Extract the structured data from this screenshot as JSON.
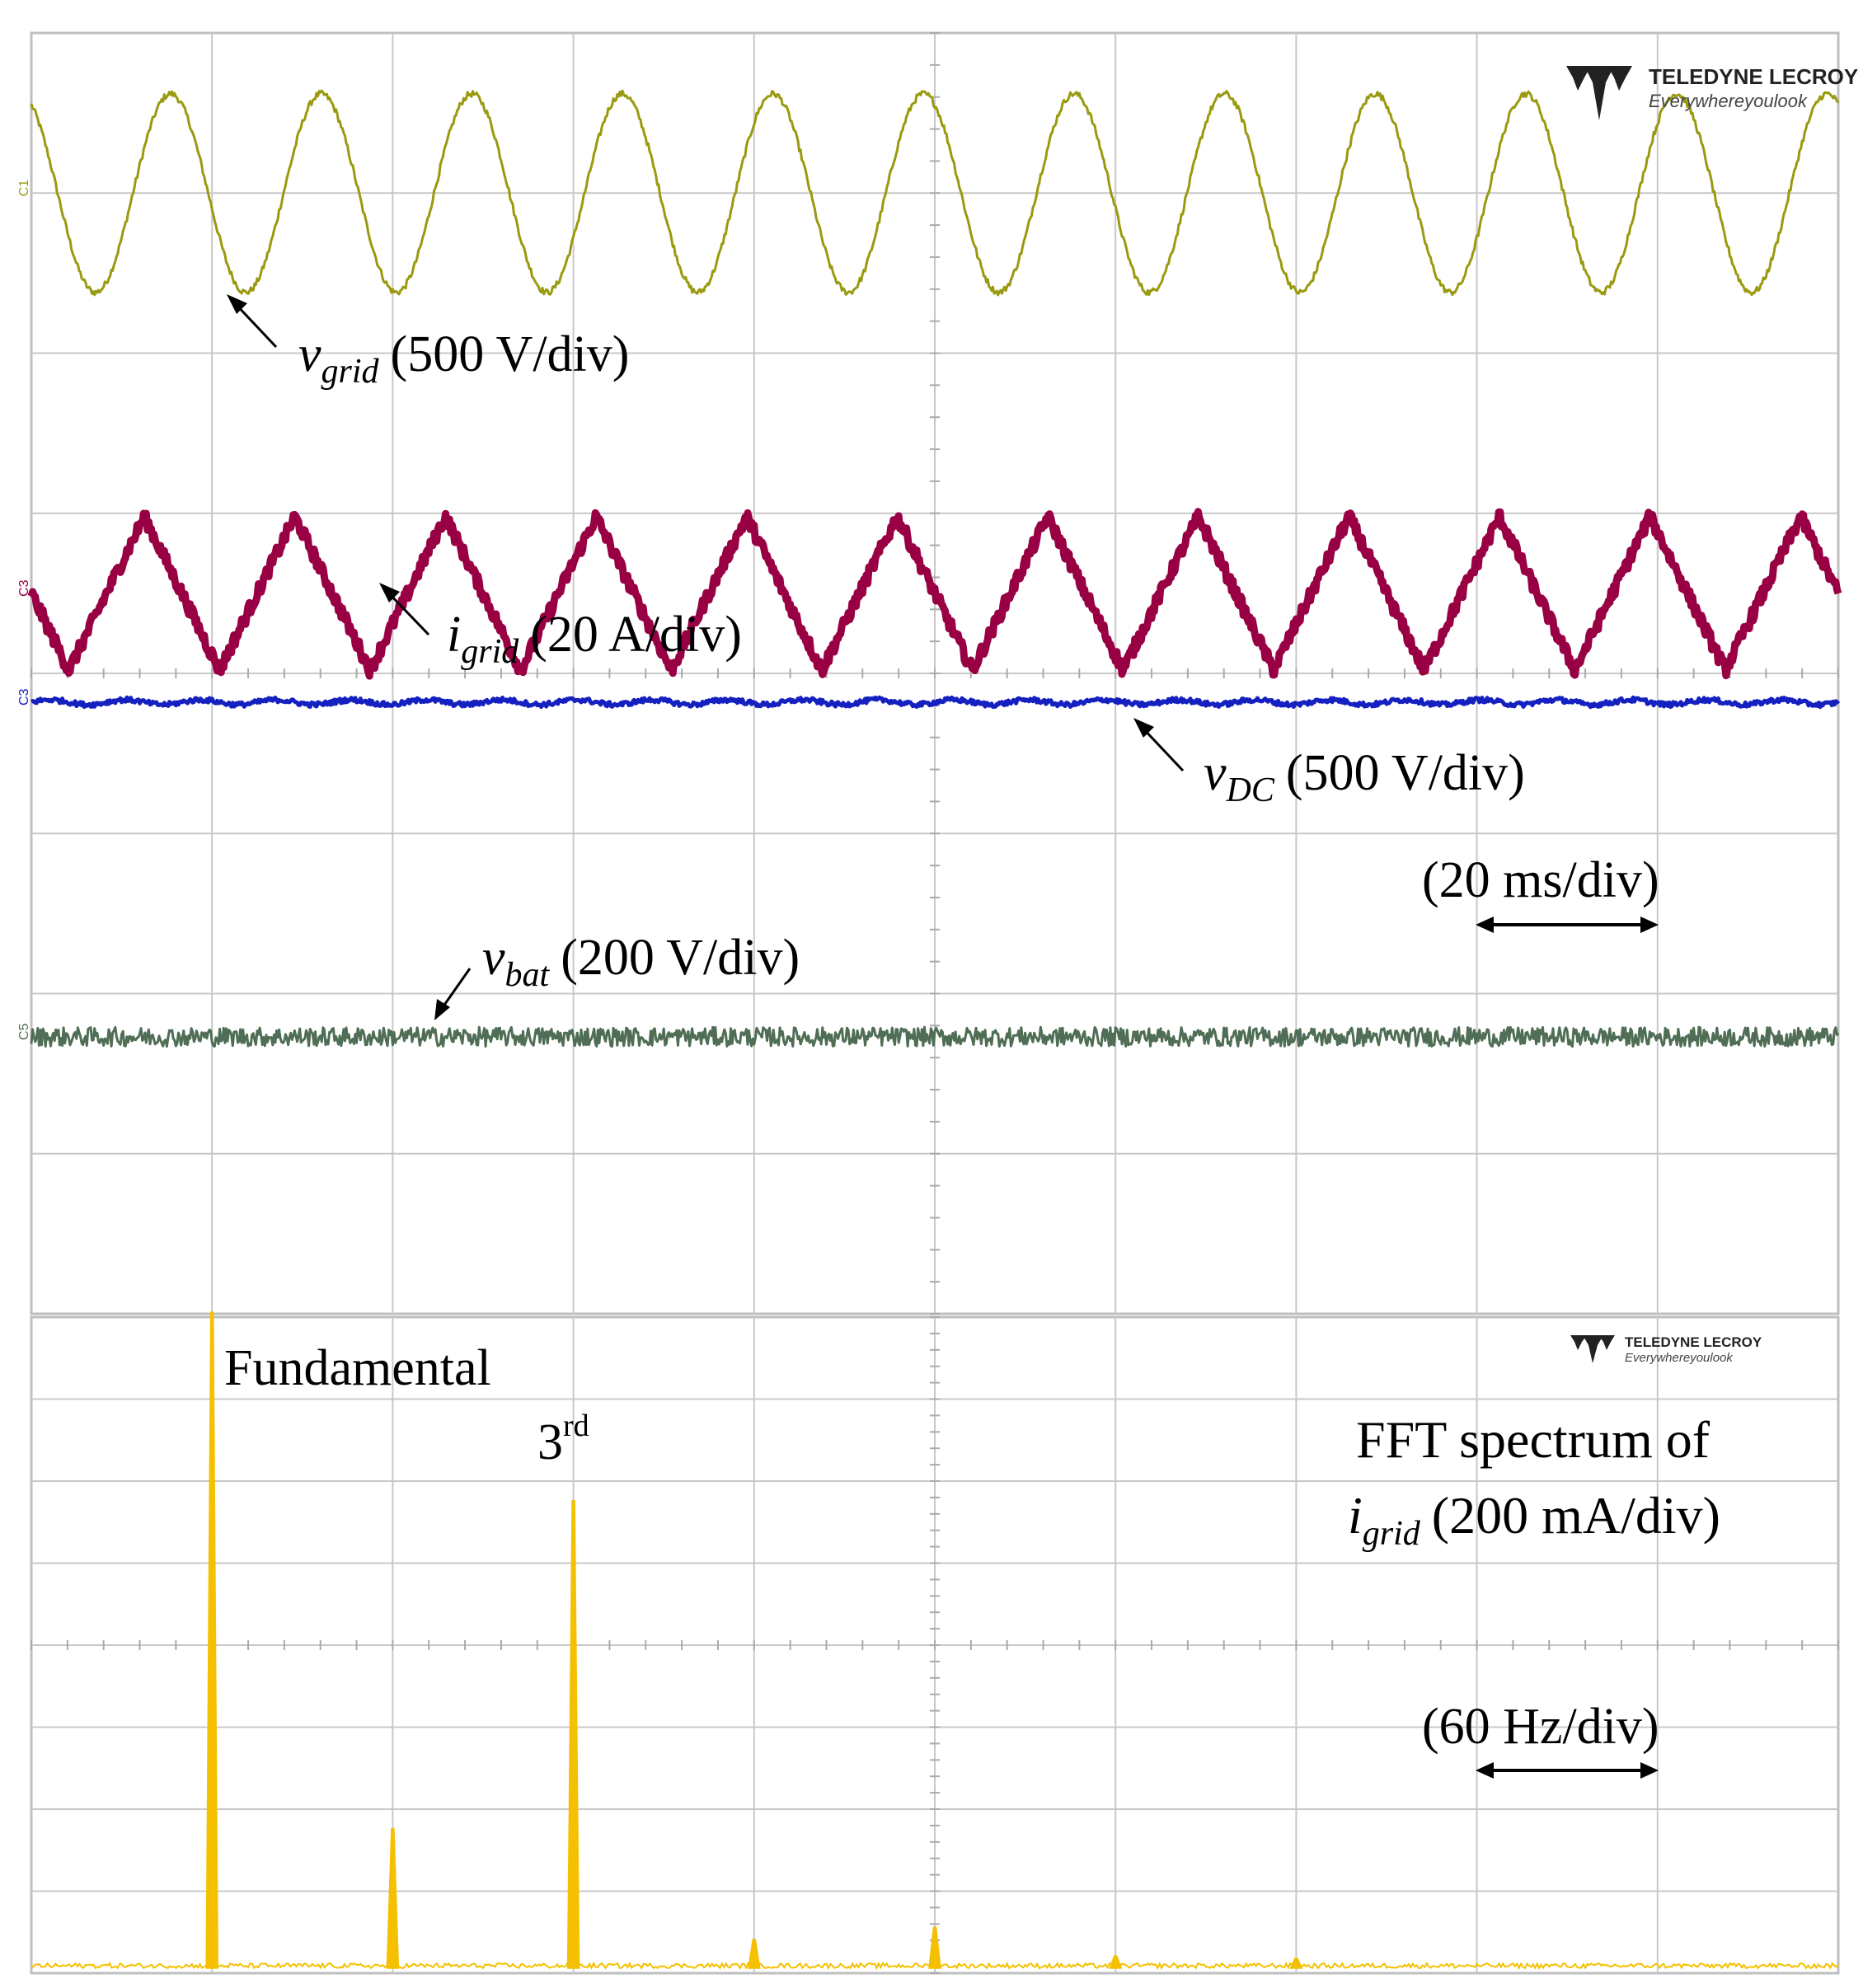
{
  "chart_data": [
    {
      "type": "line",
      "panel": "time-domain waveforms",
      "x_unit_label": "(20 ms/div)",
      "x_divisions": 10,
      "y_divisions": 8,
      "logo": {
        "brand": "TELEDYNE LECROY",
        "tagline": "Everywhereyoulook"
      },
      "series": [
        {
          "id": "vgrid",
          "channel": "C1",
          "label_main": "v",
          "label_sub": "grid",
          "scale_label": "(500 V/div)",
          "color": "#9a9a10",
          "waveform": "sine",
          "cycles": 12,
          "offset_div": 3.0,
          "amplitude_div": 0.62,
          "noise_div": 0.02,
          "stroke_width": 3
        },
        {
          "id": "igrid",
          "channel": "C3",
          "label_main": "i",
          "label_sub": "grid",
          "scale_label": "(20 A/div)",
          "color": "#990044",
          "waveform": "triangle",
          "cycles": 12,
          "offset_div": 0.5,
          "amplitude_div": 0.48,
          "noise_div": 0.045,
          "stroke_width": 9
        },
        {
          "id": "vdc",
          "channel": "C3",
          "label_main": "v",
          "label_sub": "DC",
          "scale_label": "(500 V/div)",
          "color": "#1520c0",
          "waveform": "dc",
          "cycles": 24,
          "offset_div": -0.18,
          "amplitude_div": 0.015,
          "noise_div": 0.015,
          "stroke_width": 5
        },
        {
          "id": "vbat",
          "channel": "C5",
          "label_main": "v",
          "label_sub": "bat",
          "scale_label": "(200 V/div)",
          "color": "#4f6e55",
          "waveform": "dc",
          "cycles": 0,
          "offset_div": -2.27,
          "amplitude_div": 0.0,
          "noise_div": 0.06,
          "stroke_width": 3
        }
      ]
    },
    {
      "type": "bar",
      "panel": "FFT spectrum",
      "title_line1": "FFT spectrum of",
      "title_main": "i",
      "title_sub": "grid",
      "title_scale": "(200 mA/div)",
      "x_unit_label": "(60 Hz/div)",
      "x_divisions": 10,
      "y_divisions": 8,
      "color": "#f5c000",
      "logo": {
        "brand": "TELEDYNE LECROY",
        "tagline": "Everywhereyoulook"
      },
      "peaks": [
        {
          "frequency_hz": 60,
          "amplitude_div": 8.0,
          "label": "Fundamental"
        },
        {
          "frequency_hz": 120,
          "amplitude_div": 1.7
        },
        {
          "frequency_hz": 180,
          "amplitude_div": 5.7,
          "label": "3",
          "label_sup": "rd"
        },
        {
          "frequency_hz": 240,
          "amplitude_div": 0.35
        },
        {
          "frequency_hz": 300,
          "amplitude_div": 0.5
        },
        {
          "frequency_hz": 360,
          "amplitude_div": 0.15
        },
        {
          "frequency_hz": 420,
          "amplitude_div": 0.12
        }
      ]
    }
  ]
}
